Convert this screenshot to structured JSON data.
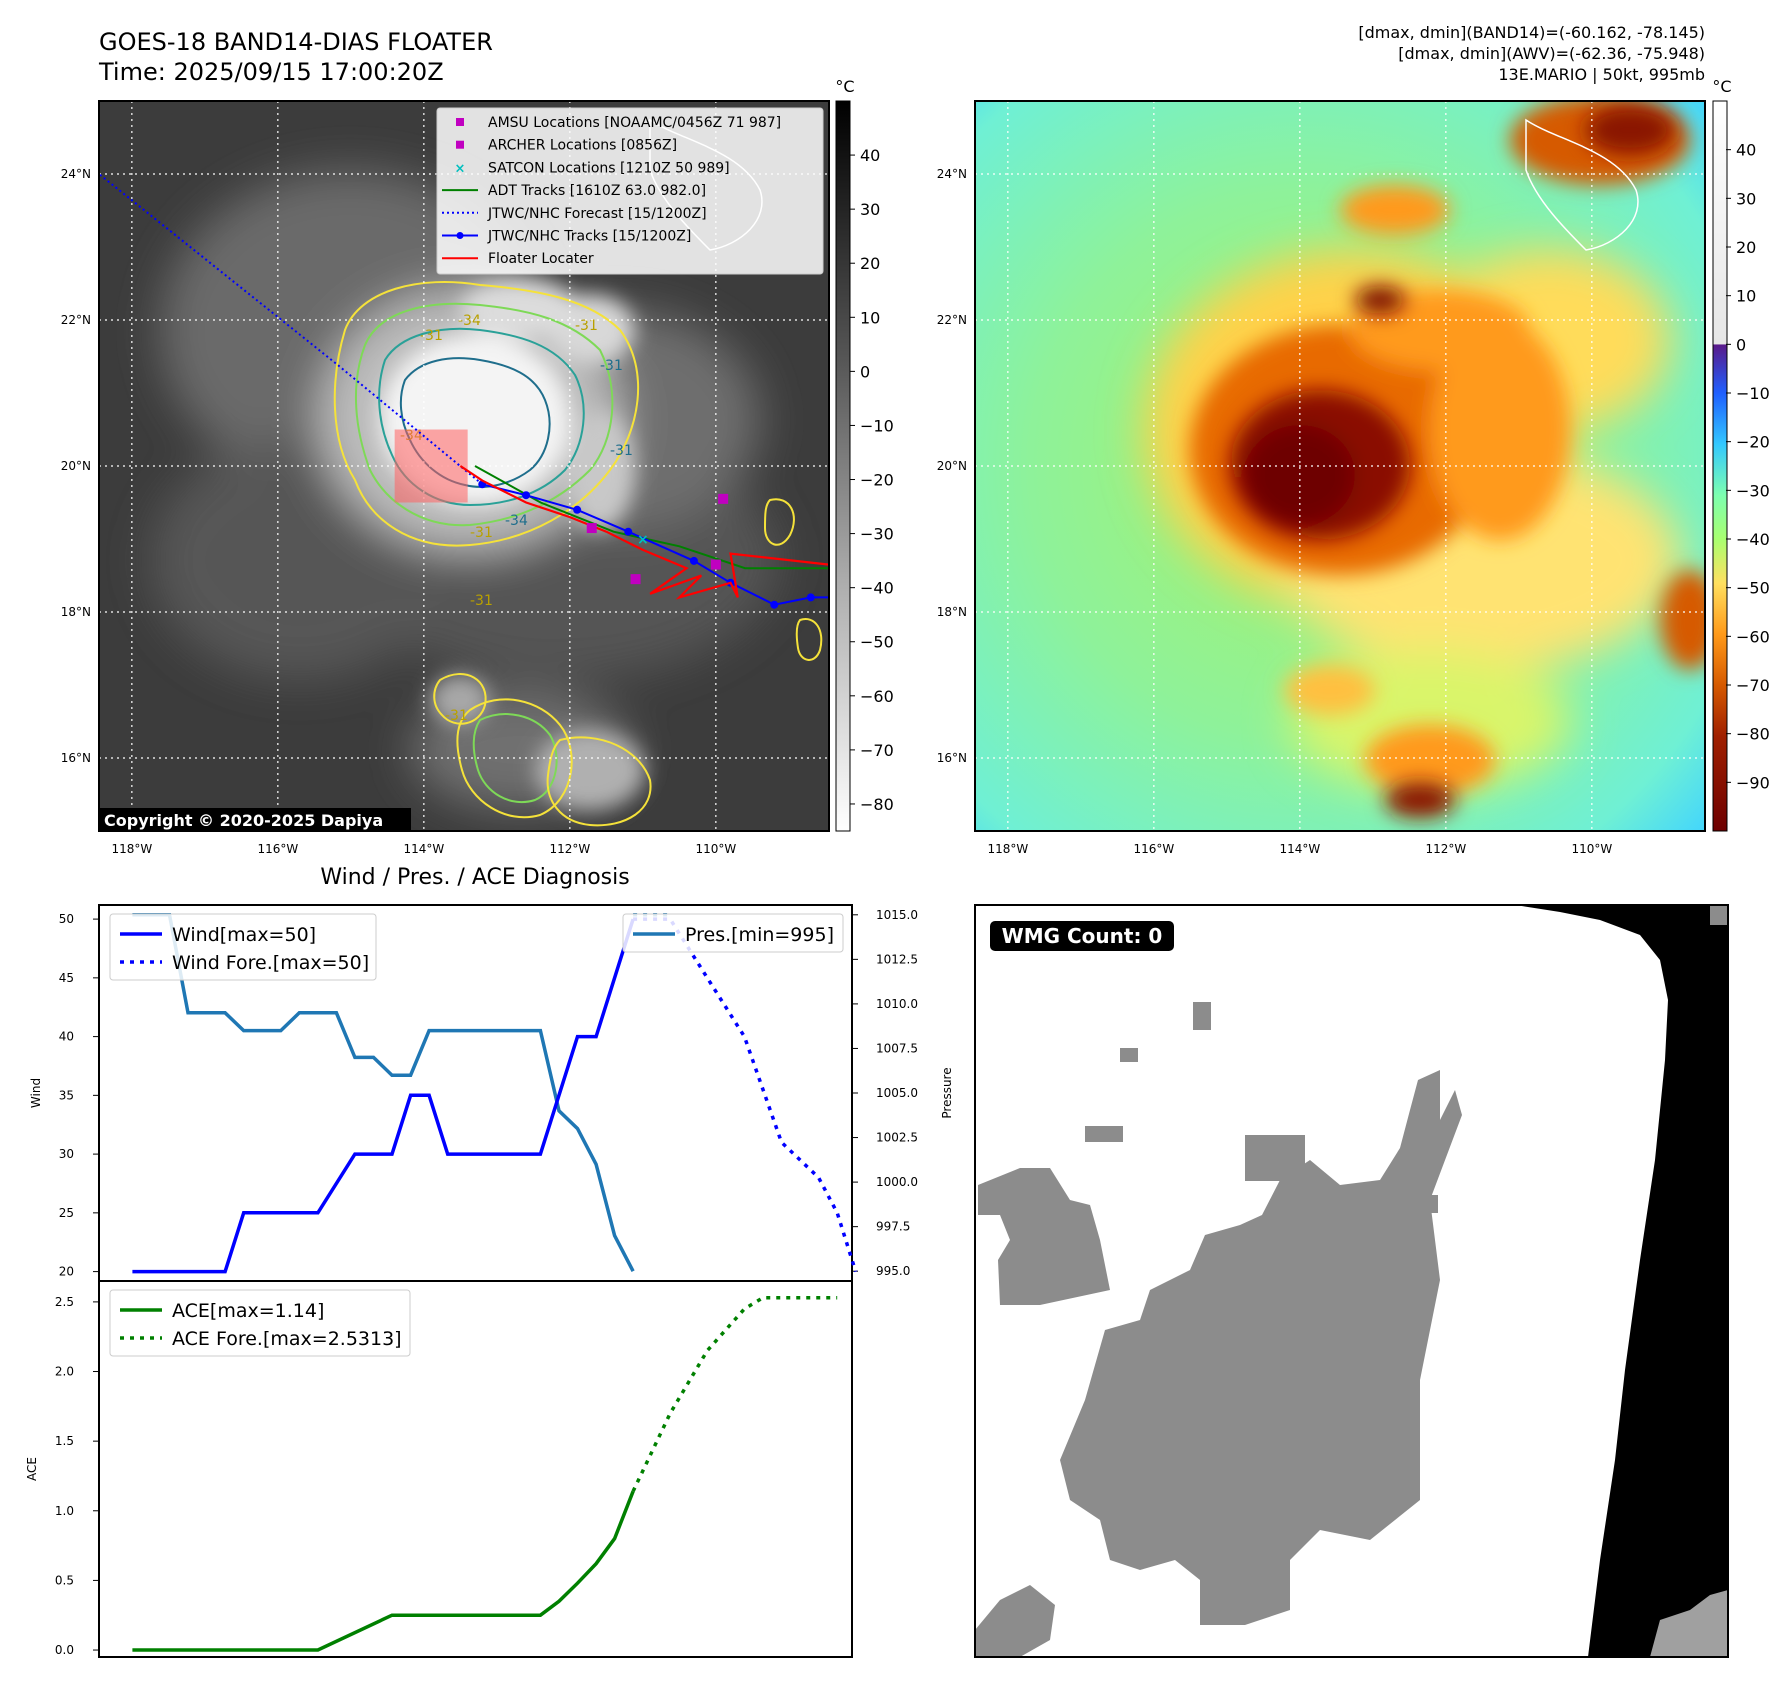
{
  "header": {
    "title": "GOES-18 BAND14-DIAS FLOATER",
    "time": "Time: 2025/09/15 17:00:20Z",
    "info_lines": [
      "[dmax, dmin](BAND14)=(-60.162, -78.145)",
      "[dmax, dmin](AWV)=(-62.36, -75.948)",
      "13E.MARIO | 50kt, 995mb"
    ]
  },
  "ir_panel": {
    "colorbar_unit": "°C",
    "colorbar_ticks": [
      "40",
      "30",
      "20",
      "10",
      "0",
      "−10",
      "−20",
      "−30",
      "−40",
      "−50",
      "−60",
      "−70",
      "−80"
    ],
    "colorbar_values": [
      40,
      30,
      20,
      10,
      0,
      -10,
      -20,
      -30,
      -40,
      -50,
      -60,
      -70,
      -80
    ],
    "colorbar_range": [
      -85,
      50
    ],
    "lat_labels": [
      "24°N",
      "22°N",
      "20°N",
      "18°N",
      "16°N"
    ],
    "lat_values": [
      24,
      22,
      20,
      18,
      16
    ],
    "lon_labels": [
      "118°W",
      "116°W",
      "114°W",
      "112°W",
      "110°W"
    ],
    "lon_values": [
      -118,
      -116,
      -114,
      -112,
      -110
    ],
    "lon_range": [
      -118.45,
      -108.45
    ],
    "lat_range": [
      15.0,
      25.0
    ],
    "contour_labels": [
      "-31",
      "-31",
      "-31",
      "-34",
      "-31",
      "-31",
      "-34",
      "-31",
      "-34",
      "-31"
    ],
    "copyright": "Copyright © 2020-2025 Dapiya",
    "legend": [
      {
        "label": "AMSU Locations [NOAAMC/0456Z 71 987]",
        "marker": "square",
        "color": "#c000c0"
      },
      {
        "label": "ARCHER Locations [0856Z]",
        "marker": "square",
        "color": "#c000c0"
      },
      {
        "label": "SATCON Locations [1210Z 50 989]",
        "marker": "x",
        "color": "#00bfbf"
      },
      {
        "label": "ADT Tracks [1610Z 63.0 982.0]",
        "marker": "line",
        "color": "#008000"
      },
      {
        "label": "JTWC/NHC Forecast [15/1200Z]",
        "marker": "dotted",
        "color": "#0000ff"
      },
      {
        "label": "JTWC/NHC Tracks [15/1200Z]",
        "marker": "line-dot",
        "color": "#0000ff"
      },
      {
        "label": "Floater Locater",
        "marker": "line",
        "color": "#ff0000"
      }
    ],
    "jtwc_track": [
      [
        -108.3,
        18.2
      ],
      [
        -108.7,
        18.2
      ],
      [
        -109.2,
        18.1
      ],
      [
        -109.8,
        18.4
      ],
      [
        -110.3,
        18.7
      ],
      [
        -111.2,
        19.1
      ],
      [
        -111.9,
        19.4
      ],
      [
        -112.6,
        19.6
      ],
      [
        -113.2,
        19.75
      ]
    ],
    "jtwc_forecast": [
      [
        -113.2,
        19.75
      ],
      [
        -115.2,
        21.4
      ],
      [
        -118.45,
        24.0
      ]
    ],
    "amsu_points": [
      [
        -109.9,
        19.55
      ],
      [
        -111.7,
        19.15
      ]
    ],
    "archer_points": [
      [
        -111.1,
        18.45
      ],
      [
        -110.0,
        18.65
      ]
    ],
    "satcon_points": [
      [
        -111.0,
        19.0
      ]
    ],
    "adt_track": [
      [
        -108.4,
        18.6
      ],
      [
        -109.6,
        18.6
      ],
      [
        -110.5,
        18.9
      ],
      [
        -111.4,
        19.1
      ],
      [
        -112.4,
        19.5
      ],
      [
        -113.3,
        20.0
      ]
    ],
    "floater_box": {
      "lon_min": -114.4,
      "lon_max": -113.4,
      "lat_min": 19.5,
      "lat_max": 20.5
    }
  },
  "wv_panel": {
    "colorbar_unit": "°C",
    "colorbar_ticks": [
      "40",
      "30",
      "20",
      "10",
      "0",
      "−10",
      "−20",
      "−30",
      "−40",
      "−50",
      "−60",
      "−70",
      "−80",
      "−90"
    ],
    "colorbar_values": [
      40,
      30,
      20,
      10,
      0,
      -10,
      -20,
      -30,
      -40,
      -50,
      -60,
      -70,
      -80,
      -90
    ],
    "colorbar_range": [
      -100,
      50
    ],
    "lat_labels": [
      "24°N",
      "22°N",
      "20°N",
      "18°N",
      "16°N"
    ],
    "lat_values": [
      24,
      22,
      20,
      18,
      16
    ],
    "lon_labels": [
      "118°W",
      "116°W",
      "114°W",
      "112°W",
      "110°W"
    ],
    "lon_values": [
      -118,
      -116,
      -114,
      -112,
      -110
    ],
    "lon_range": [
      -118.45,
      -108.45
    ],
    "lat_range": [
      15.0,
      25.0
    ]
  },
  "diagnosis": {
    "title": "Wind / Pres. / ACE Diagnosis",
    "wind_ylabel": "Wind",
    "pres_ylabel": "Pressure",
    "ace_ylabel": "ACE",
    "wind_ticks": [
      "50",
      "45",
      "40",
      "35",
      "30",
      "25",
      "20"
    ],
    "wind_tick_values": [
      50,
      45,
      40,
      35,
      30,
      25,
      20
    ],
    "pres_ticks": [
      "1015.0",
      "1012.5",
      "1010.0",
      "1007.5",
      "1005.0",
      "1002.5",
      "1000.0",
      "997.5",
      "995.0"
    ],
    "pres_tick_values": [
      1015.0,
      1012.5,
      1010.0,
      1007.5,
      1005.0,
      1002.5,
      1000.0,
      997.5,
      995.0
    ],
    "ace_ticks": [
      "2.5",
      "2.0",
      "1.5",
      "1.0",
      "0.5",
      "0.0"
    ],
    "ace_tick_values": [
      2.5,
      2.0,
      1.5,
      1.0,
      0.5,
      0.0
    ],
    "wind_legend": [
      "Wind[max=50]",
      "Wind Fore.[max=50]"
    ],
    "pres_legend": [
      "Pres.[min=995]"
    ],
    "ace_legend": [
      "ACE[max=1.14]",
      "ACE Fore.[max=2.5313]"
    ],
    "colors": {
      "wind": "#0000ff",
      "pres": "#1f77b4",
      "ace": "#008000"
    },
    "ylim_wind": [
      19.2,
      51.2
    ],
    "ylim_pres": [
      994.45,
      1015.55
    ],
    "ylim_ace": [
      -0.05,
      2.65
    ],
    "xlim": [
      -1.8,
      38.8
    ],
    "wind": [
      [
        0,
        20
      ],
      [
        5,
        20
      ],
      [
        6,
        25
      ],
      [
        10,
        25
      ],
      [
        12,
        30
      ],
      [
        14,
        30
      ],
      [
        15,
        35
      ],
      [
        16,
        35
      ],
      [
        17,
        30
      ],
      [
        22,
        30
      ],
      [
        24,
        40
      ],
      [
        25,
        40
      ],
      [
        27,
        50
      ]
    ],
    "wind_forecast": [
      [
        27,
        50
      ],
      [
        29,
        50
      ],
      [
        31,
        45
      ],
      [
        33,
        40
      ],
      [
        35,
        31
      ],
      [
        37,
        28
      ],
      [
        38,
        25
      ],
      [
        39,
        20
      ]
    ],
    "pressure": [
      [
        0,
        1015
      ],
      [
        2,
        1015
      ],
      [
        3,
        1009.5
      ],
      [
        5,
        1009.5
      ],
      [
        6,
        1008.5
      ],
      [
        8,
        1008.5
      ],
      [
        9,
        1009.5
      ],
      [
        11,
        1009.5
      ],
      [
        12,
        1007
      ],
      [
        13,
        1007
      ],
      [
        14,
        1006
      ],
      [
        15,
        1006
      ],
      [
        16,
        1008.5
      ],
      [
        22,
        1008.5
      ],
      [
        23,
        1004
      ],
      [
        24,
        1003
      ],
      [
        25,
        1001
      ],
      [
        26,
        997
      ],
      [
        27,
        995
      ]
    ],
    "pressure_forecast": [
      [
        27,
        1015
      ],
      [
        29,
        1015
      ]
    ],
    "ace": [
      [
        0,
        0
      ],
      [
        10,
        0
      ],
      [
        14,
        0.25
      ],
      [
        22,
        0.25
      ],
      [
        23,
        0.35
      ],
      [
        24,
        0.48
      ],
      [
        25,
        0.62
      ],
      [
        26,
        0.8
      ],
      [
        27,
        1.14
      ]
    ],
    "ace_forecast": [
      [
        27,
        1.14
      ],
      [
        29,
        1.7
      ],
      [
        31,
        2.15
      ],
      [
        33,
        2.45
      ],
      [
        34,
        2.53
      ],
      [
        38,
        2.53
      ]
    ]
  },
  "wmg_panel": {
    "badge": "WMG Count: 0",
    "colors": {
      "clear": "#ffffff",
      "gray": "#8c8c8c",
      "black": "#000000"
    }
  }
}
